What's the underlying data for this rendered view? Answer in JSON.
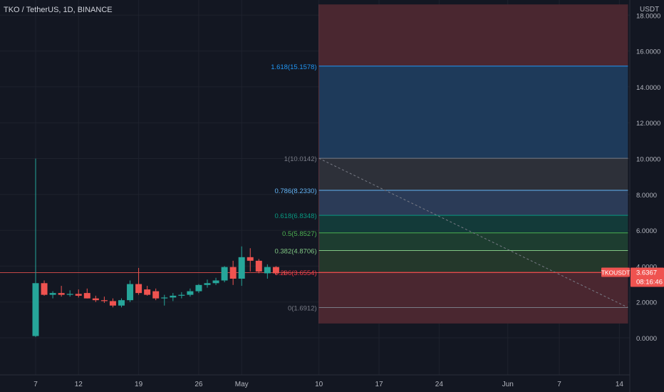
{
  "header": {
    "symbol_label": "TKO / TetherUS, 1D, BINANCE"
  },
  "price_axis": {
    "unit": "USDT",
    "current_symbol": "TKOUSDT",
    "current_price": "3.6367",
    "countdown": "08:16:46"
  },
  "colors": {
    "background": "#131722",
    "grid": "#1e222d",
    "axis_text": "#b2b5be",
    "up": "#26a69a",
    "down": "#ef5350",
    "price_line": "#ef5350",
    "fib_red": "#4a2730",
    "fib_blue": "#1e3a5a",
    "fib_grey": "#2d3039",
    "fib_steel": "#2b3b57",
    "fib_teal": "#133a39",
    "fib_green": "#1d3d30",
    "fib_olive": "#24382b"
  },
  "chart_data": {
    "type": "candlestick",
    "title": "TKO / TetherUS, 1D, BINANCE",
    "ylim": [
      -1.4,
      18.6
    ],
    "y_ticks": [
      "0.0000",
      "2.0000",
      "4.0000",
      "6.0000",
      "8.0000",
      "10.0000",
      "12.0000",
      "14.0000",
      "16.0000",
      "18.0000"
    ],
    "x_ticks": [
      "7",
      "12",
      "19",
      "26",
      "May",
      "10",
      "17",
      "24",
      "Jun",
      "7",
      "14"
    ],
    "x_tick_days": [
      0,
      5,
      12,
      19,
      24,
      33,
      40,
      47,
      55,
      61,
      68
    ],
    "candles": [
      {
        "day": 0,
        "o": 0.1,
        "h": 10.0,
        "l": 0.05,
        "c": 3.05
      },
      {
        "day": 1,
        "o": 3.05,
        "h": 3.2,
        "l": 2.35,
        "c": 2.4
      },
      {
        "day": 2,
        "o": 2.4,
        "h": 2.6,
        "l": 2.2,
        "c": 2.5
      },
      {
        "day": 3,
        "o": 2.5,
        "h": 2.9,
        "l": 2.3,
        "c": 2.4
      },
      {
        "day": 4,
        "o": 2.4,
        "h": 2.65,
        "l": 2.3,
        "c": 2.45
      },
      {
        "day": 5,
        "o": 2.45,
        "h": 2.7,
        "l": 2.25,
        "c": 2.35
      },
      {
        "day": 6,
        "o": 2.5,
        "h": 2.75,
        "l": 2.2,
        "c": 2.2
      },
      {
        "day": 7,
        "o": 2.2,
        "h": 2.35,
        "l": 2.0,
        "c": 2.1
      },
      {
        "day": 8,
        "o": 2.1,
        "h": 2.3,
        "l": 1.95,
        "c": 2.05
      },
      {
        "day": 9,
        "o": 2.05,
        "h": 2.2,
        "l": 1.7,
        "c": 1.8
      },
      {
        "day": 10,
        "o": 1.8,
        "h": 2.2,
        "l": 1.7,
        "c": 2.1
      },
      {
        "day": 11,
        "o": 2.1,
        "h": 3.2,
        "l": 2.0,
        "c": 3.0
      },
      {
        "day": 12,
        "o": 3.0,
        "h": 3.9,
        "l": 2.4,
        "c": 2.5
      },
      {
        "day": 13,
        "o": 2.7,
        "h": 2.9,
        "l": 2.35,
        "c": 2.4
      },
      {
        "day": 14,
        "o": 2.6,
        "h": 2.75,
        "l": 2.1,
        "c": 2.2
      },
      {
        "day": 15,
        "o": 2.2,
        "h": 2.4,
        "l": 1.8,
        "c": 2.25
      },
      {
        "day": 16,
        "o": 2.25,
        "h": 2.5,
        "l": 2.05,
        "c": 2.35
      },
      {
        "day": 17,
        "o": 2.35,
        "h": 2.55,
        "l": 2.2,
        "c": 2.4
      },
      {
        "day": 18,
        "o": 2.4,
        "h": 2.75,
        "l": 2.3,
        "c": 2.6
      },
      {
        "day": 19,
        "o": 2.6,
        "h": 3.0,
        "l": 2.5,
        "c": 2.95
      },
      {
        "day": 20,
        "o": 2.95,
        "h": 3.25,
        "l": 2.8,
        "c": 3.05
      },
      {
        "day": 21,
        "o": 3.05,
        "h": 3.35,
        "l": 2.95,
        "c": 3.2
      },
      {
        "day": 22,
        "o": 3.2,
        "h": 4.0,
        "l": 3.1,
        "c": 3.95
      },
      {
        "day": 23,
        "o": 3.95,
        "h": 4.3,
        "l": 2.95,
        "c": 3.3
      },
      {
        "day": 24,
        "o": 3.3,
        "h": 5.1,
        "l": 2.9,
        "c": 4.5
      },
      {
        "day": 25,
        "o": 4.5,
        "h": 5.0,
        "l": 3.7,
        "c": 4.3
      },
      {
        "day": 26,
        "o": 4.3,
        "h": 4.4,
        "l": 3.6,
        "c": 3.7
      },
      {
        "day": 27,
        "o": 3.6,
        "h": 4.1,
        "l": 3.3,
        "c": 3.95
      },
      {
        "day": 28,
        "o": 3.95,
        "h": 4.0,
        "l": 3.5,
        "c": 3.6
      },
      {
        "day": 29,
        "o": 3.65,
        "h": 3.75,
        "l": 3.5,
        "c": 3.64
      }
    ],
    "current_price_value": 3.6367,
    "fib": {
      "x_start_day": 33,
      "x_end_day": 69,
      "levels": [
        {
          "label": "0(1.6912)",
          "value": 1.6912,
          "color": "#787b86"
        },
        {
          "label": "0.236(3.6554)",
          "value": 3.6554,
          "color": "#f23645"
        },
        {
          "label": "0.382(4.8706)",
          "value": 4.8706,
          "color": "#81c784"
        },
        {
          "label": "0.5(5.8527)",
          "value": 5.8527,
          "color": "#4caf50"
        },
        {
          "label": "0.618(6.8348)",
          "value": 6.8348,
          "color": "#089981"
        },
        {
          "label": "0.786(8.2330)",
          "value": 8.233,
          "color": "#64b5f6"
        },
        {
          "label": "1(10.0142)",
          "value": 10.0142,
          "color": "#787b86"
        },
        {
          "label": "1.618(15.1578)",
          "value": 15.1578,
          "color": "#2196f3"
        }
      ],
      "bands": [
        {
          "from": 0.8,
          "to": 1.6912,
          "fill": "fib_red"
        },
        {
          "from": 1.6912,
          "to": 3.6554,
          "fill": "fib_red"
        },
        {
          "from": 3.6554,
          "to": 4.8706,
          "fill": "fib_olive"
        },
        {
          "from": 4.8706,
          "to": 5.8527,
          "fill": "fib_green"
        },
        {
          "from": 5.8527,
          "to": 6.8348,
          "fill": "fib_teal"
        },
        {
          "from": 6.8348,
          "to": 8.233,
          "fill": "fib_steel"
        },
        {
          "from": 8.233,
          "to": 10.0142,
          "fill": "fib_grey"
        },
        {
          "from": 10.0142,
          "to": 15.1578,
          "fill": "fib_blue"
        },
        {
          "from": 15.1578,
          "to": 18.6,
          "fill": "fib_red"
        }
      ],
      "trend_line": {
        "from": {
          "day": 33,
          "value": 10.0142
        },
        "to": {
          "day": 69,
          "value": 1.6912
        }
      }
    }
  }
}
